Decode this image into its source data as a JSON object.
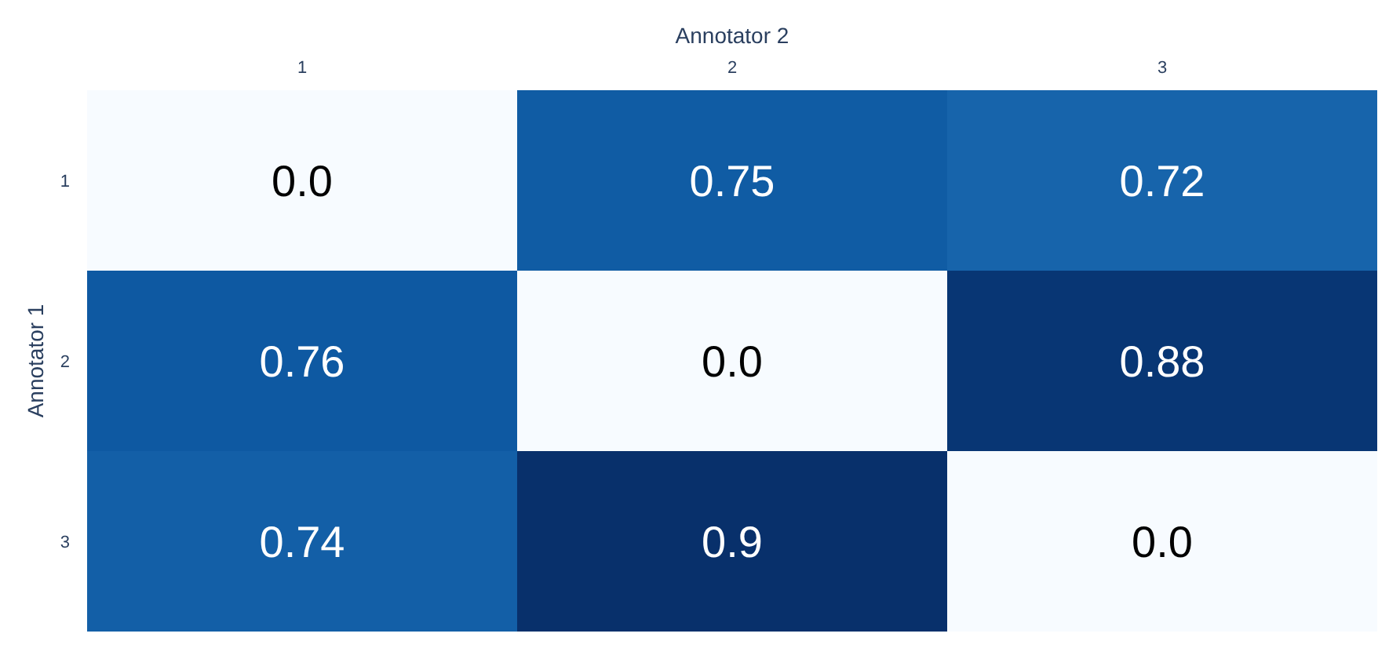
{
  "chart_data": {
    "type": "heatmap",
    "xlabel": "Annotator 2",
    "ylabel": "Annotator 1",
    "categories": [
      "1",
      "2",
      "3"
    ],
    "y_categories": [
      "1",
      "2",
      "3"
    ],
    "cells": [
      [
        0.0,
        0.75,
        0.72
      ],
      [
        0.76,
        0.0,
        0.88
      ],
      [
        0.74,
        0.9,
        0.0
      ]
    ],
    "cell_labels": [
      [
        "0.0",
        "0.75",
        "0.72"
      ],
      [
        "0.76",
        "0.0",
        "0.88"
      ],
      [
        "0.74",
        "0.9",
        "0.0"
      ]
    ]
  }
}
